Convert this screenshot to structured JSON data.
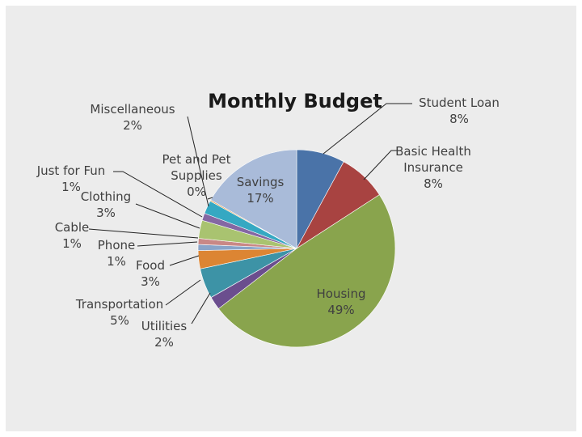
{
  "chart_data": {
    "type": "pie",
    "title": "Monthly Budget",
    "slices": [
      {
        "label": "Student Loan",
        "line1": "Student Loan",
        "line2": "8%",
        "percent": 8.0,
        "color": "#4a73a8"
      },
      {
        "label": "Basic Health Insurance",
        "line1": "Basic Health",
        "line2": "Insurance",
        "line3": "8%",
        "percent": 8.0,
        "color": "#a84341"
      },
      {
        "label": "Housing",
        "line1": "Housing",
        "line2": "49%",
        "percent": 49.2,
        "color": "#89a44d"
      },
      {
        "label": "Utilities",
        "line1": "Utilities",
        "line2": "2%",
        "percent": 2.2,
        "color": "#6b4e8e"
      },
      {
        "label": "Transportation",
        "line1": "Transportation",
        "line2": "5%",
        "percent": 5.0,
        "color": "#3d93a6"
      },
      {
        "label": "Food",
        "line1": "Food",
        "line2": "3%",
        "percent": 3.0,
        "color": "#dc8533"
      },
      {
        "label": "Phone",
        "line1": "Phone",
        "line2": "1%",
        "percent": 1.0,
        "color": "#8aa4c8"
      },
      {
        "label": "Cable",
        "line1": "Cable",
        "line2": "1%",
        "percent": 1.0,
        "color": "#c98886"
      },
      {
        "label": "Clothing",
        "line1": "Clothing",
        "line2": "3%",
        "percent": 3.0,
        "color": "#a9c370"
      },
      {
        "label": "Just for Fun",
        "line1": "Just for Fun",
        "line2": "1%",
        "percent": 1.2,
        "color": "#8467a3"
      },
      {
        "label": "Miscellaneous",
        "line1": "Miscellaneous",
        "line2": "2%",
        "percent": 2.2,
        "color": "#35a8c2"
      },
      {
        "label": "Pet and Pet Supplies",
        "line1": "Pet and Pet",
        "line2": "Supplies",
        "line3": "0%",
        "percent": 0.2,
        "color": "#e8953a"
      },
      {
        "label": "Savings",
        "line1": "Savings",
        "line2": "17%",
        "percent": 17.0,
        "color": "#a9bbd9"
      }
    ]
  }
}
